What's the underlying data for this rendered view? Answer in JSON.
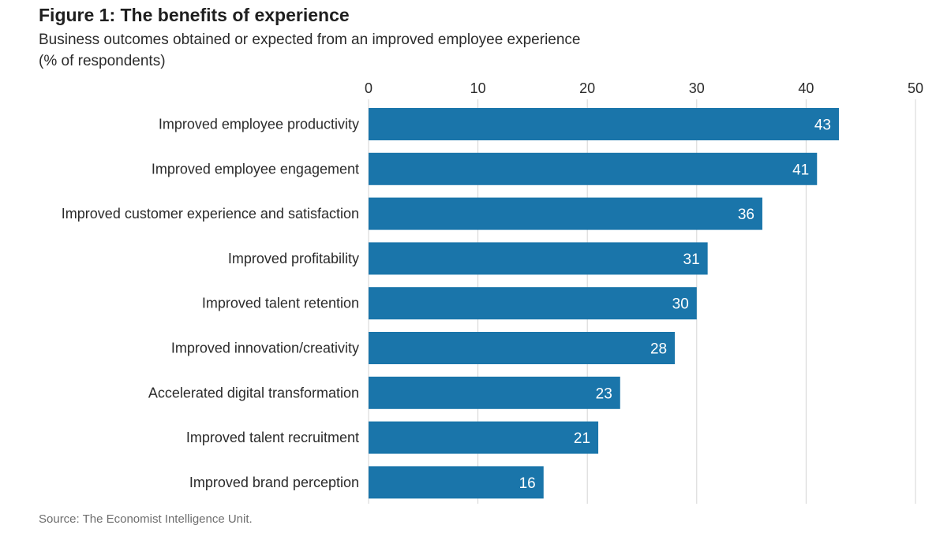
{
  "header": {
    "title": "Figure 1: The benefits of experience",
    "subtitle_line1": "Business outcomes obtained or expected from an improved employee experience",
    "subtitle_line2": "(% of respondents)"
  },
  "footer": {
    "source": "Source: The Economist Intelligence Unit."
  },
  "colors": {
    "bar": "#1a75aa",
    "bar_label": "#ffffff",
    "gridline": "#d4d4d4",
    "text": "#2b2b2b"
  },
  "chart_data": {
    "type": "bar",
    "orientation": "horizontal",
    "categories": [
      "Improved employee productivity",
      "Improved employee engagement",
      "Improved customer experience and satisfaction",
      "Improved profitability",
      "Improved talent retention",
      "Improved innovation/creativity",
      "Accelerated digital transformation",
      "Improved talent recruitment",
      "Improved brand perception"
    ],
    "values": [
      43,
      41,
      36,
      31,
      30,
      28,
      23,
      21,
      16
    ],
    "xlim": [
      0,
      50
    ],
    "ticks": [
      0,
      10,
      20,
      30,
      40,
      50
    ],
    "axis_position": "top",
    "grid": true,
    "data_labels": true
  }
}
